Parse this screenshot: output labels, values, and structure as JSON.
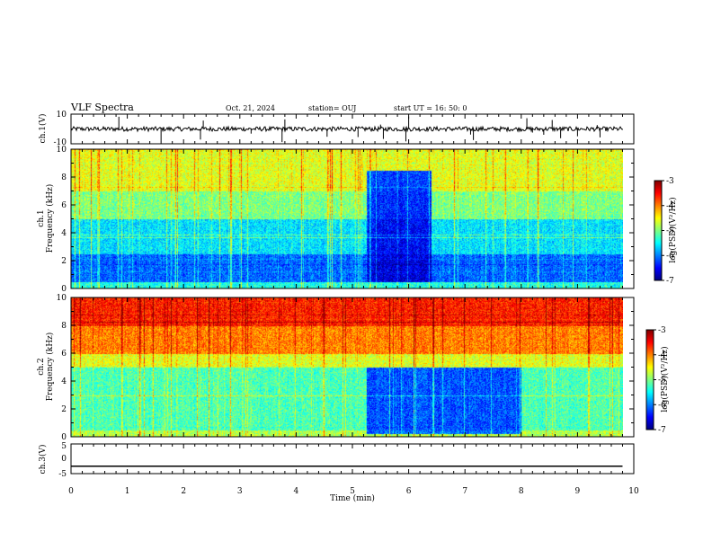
{
  "header": {
    "title": "VLF Spectra",
    "date": "Oct. 21, 2024",
    "station": "station= OUJ",
    "start": "start  UT =   16: 50: 0"
  },
  "colors": {
    "spectrogram_scale": [
      "#00007f",
      "#0000ff",
      "#0080ff",
      "#00ffff",
      "#80ff80",
      "#ffff00",
      "#ff8000",
      "#ff0000",
      "#800000"
    ]
  },
  "chart_data": [
    {
      "type": "line",
      "name": "ch1-waveform",
      "ylabel": "ch.1(V)",
      "ylim": [
        -10,
        10
      ],
      "yticks": [
        "10",
        "-10"
      ],
      "x": [
        0,
        10
      ],
      "y": [
        0,
        0
      ],
      "note_visible": "noisy baseline near 0 V with sparse impulsive spikes"
    },
    {
      "type": "heatmap",
      "name": "ch1-spectrogram",
      "ylabel_line1": "ch.1",
      "ylabel_line2": "Frequency (kHz)",
      "ylim": [
        0,
        10
      ],
      "yticks": [
        "0",
        "2",
        "4",
        "6",
        "8",
        "10"
      ],
      "xlim": [
        0,
        10
      ],
      "colorbar": {
        "label": "log(PSD)(V²/Hz)",
        "range": [
          -7,
          -3
        ],
        "ticks": [
          "-3",
          "-4",
          "-5",
          "-6",
          "-7"
        ]
      },
      "features": [
        {
          "t_start": 5.25,
          "t_end": 6.4,
          "f_low": 0.5,
          "f_high": 8.5,
          "level": -6.8
        }
      ]
    },
    {
      "type": "heatmap",
      "name": "ch2-spectrogram",
      "ylabel_line1": "ch.2",
      "ylabel_line2": "Frequency (kHz)",
      "ylim": [
        0,
        10
      ],
      "yticks": [
        "0",
        "2",
        "4",
        "6",
        "8",
        "10"
      ],
      "xlim": [
        0,
        10
      ],
      "colorbar": {
        "label": "log(PSD)(V²/Hz)",
        "range": [
          -7,
          -3
        ],
        "ticks": [
          "-3",
          "-4",
          "-5",
          "-6",
          "-7"
        ]
      },
      "features": [
        {
          "t_start": 5.25,
          "t_end": 8.0,
          "f_low": 0.2,
          "f_high": 5.0,
          "level": -6.5
        }
      ]
    },
    {
      "type": "line",
      "name": "ch3-waveform",
      "ylabel": "ch.3(V)",
      "ylim": [
        -5,
        5
      ],
      "yticks": [
        "5",
        "0",
        "-5"
      ],
      "x": [
        0,
        9.8
      ],
      "y": [
        -2.5,
        -2.5
      ]
    }
  ],
  "xaxis": {
    "label": "Time  (min)",
    "ticks": [
      "0",
      "1",
      "2",
      "3",
      "4",
      "5",
      "6",
      "7",
      "8",
      "9",
      "10"
    ],
    "range": [
      0,
      10
    ]
  }
}
